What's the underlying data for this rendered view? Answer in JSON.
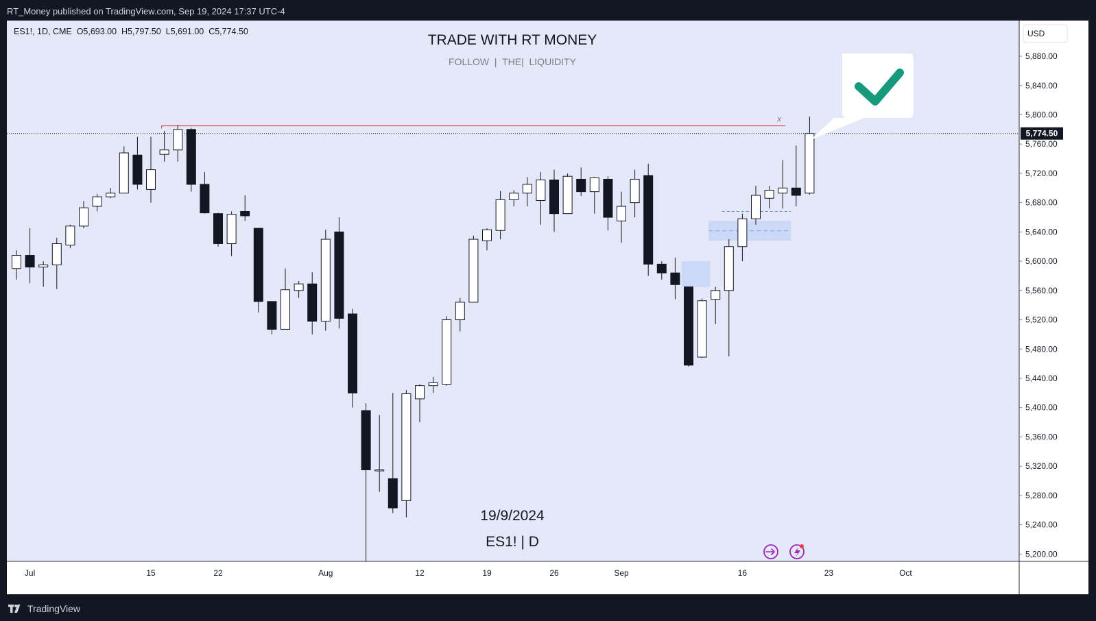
{
  "header": {
    "publisher_line": "RT_Money published on TradingView.com, Sep 19, 2024 17:37 UTC-4"
  },
  "footer": {
    "brand": "TradingView",
    "brand_icon": "tradingview-logo-icon"
  },
  "chart_data": {
    "type": "candlestick",
    "symbol_line": "ES1!, 1D, CME  O5,693.00  H5,797.50  L5,691.00  C5,774.50",
    "title": "TRADE WITH RT MONEY",
    "subtitle": "FOLLOW  |  THE|  LIQUIDITY",
    "date_label": "19/9/2024",
    "symbol_label": "ES1! | D",
    "currency": "USD",
    "last_price_label": "5,774.50",
    "last_price": 5774.5,
    "ylim": [
      5190,
      5910
    ],
    "y_ticks": [
      "5,200.00",
      "5,240.00",
      "5,280.00",
      "5,320.00",
      "5,360.00",
      "5,400.00",
      "5,440.00",
      "5,480.00",
      "5,520.00",
      "5,560.00",
      "5,600.00",
      "5,640.00",
      "5,680.00",
      "5,720.00",
      "5,760.00",
      "5,800.00",
      "5,840.00",
      "5,880.00"
    ],
    "x_ticks": [
      {
        "label": "Jul",
        "date": "2024-07-01"
      },
      {
        "label": "15",
        "date": "2024-07-15"
      },
      {
        "label": "22",
        "date": "2024-07-22"
      },
      {
        "label": "Aug",
        "date": "2024-08-01"
      },
      {
        "label": "12",
        "date": "2024-08-12"
      },
      {
        "label": "19",
        "date": "2024-08-19"
      },
      {
        "label": "26",
        "date": "2024-08-26"
      },
      {
        "label": "Sep",
        "date": "2024-09-03"
      },
      {
        "label": "16",
        "date": "2024-09-16"
      },
      {
        "label": "23",
        "date": "2024-09-23"
      },
      {
        "label": "Oct",
        "date": "2024-10-01"
      }
    ],
    "colors": {
      "plot_bg": "#e4e8f8",
      "up_body": "#ffffff",
      "down_body": "#131722",
      "wick": "#131722",
      "resistance_line": "#e04e5e",
      "zone": "#c5d3f7",
      "check": "#169a7b",
      "icons": "#9c27b0"
    },
    "annotations": {
      "resistance_level": 5785,
      "resistance_from": "2024-07-16",
      "resistance_to": "2024-09-19",
      "x_marker": "x",
      "check_icon": "checkmark-icon",
      "zones": [
        {
          "from": "2024-09-10",
          "to": "2024-09-11",
          "low": 5565,
          "high": 5600
        },
        {
          "from": "2024-09-12",
          "to": "2024-09-19",
          "low": 5628,
          "high": 5655
        }
      ],
      "dashed_level": 5668,
      "bottom_icons": [
        "replay-icon",
        "lightning-icon"
      ]
    },
    "candles": [
      {
        "date": "2024-06-28",
        "o": 5590,
        "h": 5615,
        "l": 5575,
        "c": 5608
      },
      {
        "date": "2024-07-01",
        "o": 5608,
        "h": 5645,
        "l": 5570,
        "c": 5592
      },
      {
        "date": "2024-07-02",
        "o": 5592,
        "h": 5600,
        "l": 5565,
        "c": 5595
      },
      {
        "date": "2024-07-03",
        "o": 5595,
        "h": 5632,
        "l": 5562,
        "c": 5624
      },
      {
        "date": "2024-07-05",
        "o": 5622,
        "h": 5650,
        "l": 5618,
        "c": 5648
      },
      {
        "date": "2024-07-08",
        "o": 5648,
        "h": 5682,
        "l": 5645,
        "c": 5673
      },
      {
        "date": "2024-07-09",
        "o": 5675,
        "h": 5692,
        "l": 5668,
        "c": 5688
      },
      {
        "date": "2024-07-10",
        "o": 5688,
        "h": 5700,
        "l": 5686,
        "c": 5693
      },
      {
        "date": "2024-07-11",
        "o": 5693,
        "h": 5757,
        "l": 5693,
        "c": 5748
      },
      {
        "date": "2024-07-12",
        "o": 5745,
        "h": 5770,
        "l": 5698,
        "c": 5705
      },
      {
        "date": "2024-07-15",
        "o": 5698,
        "h": 5770,
        "l": 5680,
        "c": 5725
      },
      {
        "date": "2024-07-16",
        "o": 5746,
        "h": 5778,
        "l": 5736,
        "c": 5752
      },
      {
        "date": "2024-07-17",
        "o": 5752,
        "h": 5786,
        "l": 5736,
        "c": 5780
      },
      {
        "date": "2024-07-18",
        "o": 5780,
        "h": 5782,
        "l": 5695,
        "c": 5705
      },
      {
        "date": "2024-07-19",
        "o": 5705,
        "h": 5722,
        "l": 5665,
        "c": 5666
      },
      {
        "date": "2024-07-22",
        "o": 5665,
        "h": 5666,
        "l": 5620,
        "c": 5624
      },
      {
        "date": "2024-07-23",
        "o": 5624,
        "h": 5668,
        "l": 5607,
        "c": 5664
      },
      {
        "date": "2024-07-24",
        "o": 5668,
        "h": 5690,
        "l": 5655,
        "c": 5662
      },
      {
        "date": "2024-07-25",
        "o": 5645,
        "h": 5645,
        "l": 5530,
        "c": 5545
      },
      {
        "date": "2024-07-26",
        "o": 5545,
        "h": 5545,
        "l": 5500,
        "c": 5507
      },
      {
        "date": "2024-07-29",
        "o": 5507,
        "h": 5590,
        "l": 5507,
        "c": 5561
      },
      {
        "date": "2024-07-30",
        "o": 5560,
        "h": 5573,
        "l": 5550,
        "c": 5569
      },
      {
        "date": "2024-07-31",
        "o": 5569,
        "h": 5585,
        "l": 5500,
        "c": 5518
      },
      {
        "date": "2024-08-01",
        "o": 5518,
        "h": 5643,
        "l": 5505,
        "c": 5630
      },
      {
        "date": "2024-08-02",
        "o": 5640,
        "h": 5660,
        "l": 5508,
        "c": 5522
      },
      {
        "date": "2024-08-05",
        "o": 5528,
        "h": 5535,
        "l": 5400,
        "c": 5420
      },
      {
        "date": "2024-08-06",
        "o": 5396,
        "h": 5406,
        "l": 5190,
        "c": 5315
      },
      {
        "date": "2024-08-07",
        "o": 5315,
        "h": 5390,
        "l": 5285,
        "c": 5315
      },
      {
        "date": "2024-08-08",
        "o": 5303,
        "h": 5420,
        "l": 5256,
        "c": 5263
      },
      {
        "date": "2024-08-09",
        "o": 5273,
        "h": 5424,
        "l": 5250,
        "c": 5419
      },
      {
        "date": "2024-08-12",
        "o": 5412,
        "h": 5432,
        "l": 5380,
        "c": 5430
      },
      {
        "date": "2024-08-13",
        "o": 5430,
        "h": 5442,
        "l": 5420,
        "c": 5434
      },
      {
        "date": "2024-08-14",
        "o": 5432,
        "h": 5525,
        "l": 5430,
        "c": 5520
      },
      {
        "date": "2024-08-15",
        "o": 5520,
        "h": 5550,
        "l": 5504,
        "c": 5544
      },
      {
        "date": "2024-08-16",
        "o": 5544,
        "h": 5635,
        "l": 5544,
        "c": 5630
      },
      {
        "date": "2024-08-19",
        "o": 5628,
        "h": 5645,
        "l": 5615,
        "c": 5643
      },
      {
        "date": "2024-08-20",
        "o": 5642,
        "h": 5696,
        "l": 5630,
        "c": 5684
      },
      {
        "date": "2024-08-21",
        "o": 5684,
        "h": 5697,
        "l": 5675,
        "c": 5693
      },
      {
        "date": "2024-08-22",
        "o": 5693,
        "h": 5715,
        "l": 5675,
        "c": 5705
      },
      {
        "date": "2024-08-23",
        "o": 5683,
        "h": 5722,
        "l": 5650,
        "c": 5711
      },
      {
        "date": "2024-08-26",
        "o": 5711,
        "h": 5725,
        "l": 5640,
        "c": 5665
      },
      {
        "date": "2024-08-27",
        "o": 5665,
        "h": 5720,
        "l": 5665,
        "c": 5716
      },
      {
        "date": "2024-08-28",
        "o": 5712,
        "h": 5728,
        "l": 5689,
        "c": 5695
      },
      {
        "date": "2024-08-29",
        "o": 5695,
        "h": 5715,
        "l": 5665,
        "c": 5714
      },
      {
        "date": "2024-08-30",
        "o": 5712,
        "h": 5716,
        "l": 5642,
        "c": 5660
      },
      {
        "date": "2024-09-03",
        "o": 5655,
        "h": 5695,
        "l": 5625,
        "c": 5675
      },
      {
        "date": "2024-09-04",
        "o": 5680,
        "h": 5725,
        "l": 5660,
        "c": 5712
      },
      {
        "date": "2024-09-05",
        "o": 5717,
        "h": 5733,
        "l": 5580,
        "c": 5596
      },
      {
        "date": "2024-09-06",
        "o": 5596,
        "h": 5600,
        "l": 5575,
        "c": 5584
      },
      {
        "date": "2024-09-09",
        "o": 5584,
        "h": 5605,
        "l": 5548,
        "c": 5568
      },
      {
        "date": "2024-09-10",
        "o": 5565,
        "h": 5565,
        "l": 5456,
        "c": 5458
      },
      {
        "date": "2024-09-11",
        "o": 5469,
        "h": 5549,
        "l": 5468,
        "c": 5546
      },
      {
        "date": "2024-09-12",
        "o": 5548,
        "h": 5565,
        "l": 5514,
        "c": 5560
      },
      {
        "date": "2024-09-13",
        "o": 5560,
        "h": 5630,
        "l": 5470,
        "c": 5620
      },
      {
        "date": "2024-09-16",
        "o": 5620,
        "h": 5665,
        "l": 5600,
        "c": 5658
      },
      {
        "date": "2024-09-17",
        "o": 5658,
        "h": 5703,
        "l": 5650,
        "c": 5690
      },
      {
        "date": "2024-09-18",
        "o": 5686,
        "h": 5703,
        "l": 5672,
        "c": 5697
      },
      {
        "date": "2024-09-19",
        "o": 5693,
        "h": 5738,
        "l": 5672,
        "c": 5700
      },
      {
        "date": "2024-09-20",
        "o": 5700,
        "h": 5758,
        "l": 5675,
        "c": 5690
      },
      {
        "date": "2024-09-21",
        "o": 5693,
        "h": 5797.5,
        "l": 5691,
        "c": 5774.5
      }
    ]
  }
}
